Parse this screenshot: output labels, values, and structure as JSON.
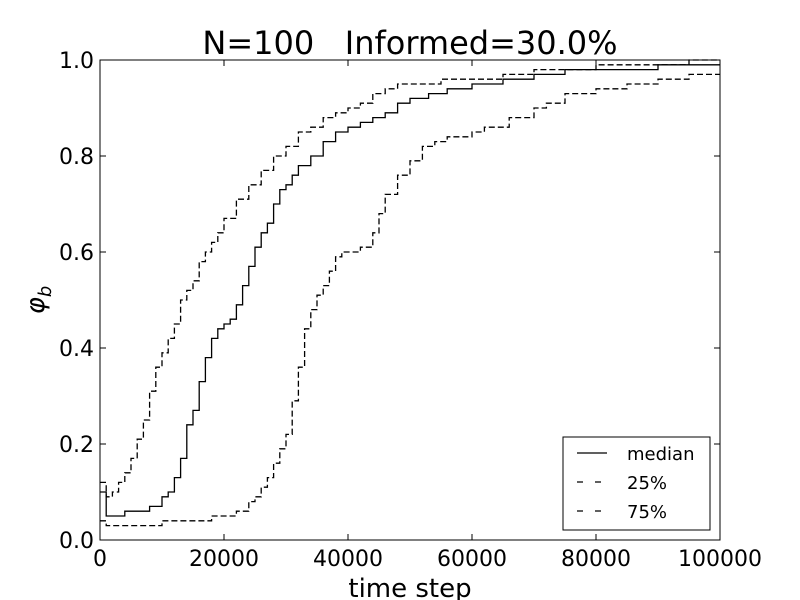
{
  "chart_data": {
    "type": "line",
    "title": "N=100   Informed=30.0%",
    "xlabel": "time step",
    "ylabel": "φ_b",
    "xlim": [
      0,
      100000
    ],
    "ylim": [
      0.0,
      1.0
    ],
    "x_ticks": [
      0,
      20000,
      40000,
      60000,
      80000,
      100000
    ],
    "x_tick_labels": [
      "0",
      "20000",
      "40000",
      "60000",
      "80000",
      "100000"
    ],
    "y_ticks": [
      0.0,
      0.2,
      0.4,
      0.6,
      0.8,
      1.0
    ],
    "y_tick_labels": [
      "0.0",
      "0.2",
      "0.4",
      "0.6",
      "0.8",
      "1.0"
    ],
    "grid": false,
    "legend_position": "lower-right",
    "series": [
      {
        "name": "median",
        "style": "solid",
        "color": "#000000",
        "x": [
          0,
          1000,
          2000,
          4000,
          6000,
          8000,
          10000,
          11000,
          12000,
          13000,
          14000,
          15000,
          16000,
          17000,
          18000,
          19000,
          20000,
          21000,
          22000,
          23000,
          24000,
          25000,
          26000,
          27000,
          28000,
          29000,
          30000,
          31000,
          32000,
          34000,
          36000,
          38000,
          40000,
          42000,
          44000,
          46000,
          48000,
          50000,
          53000,
          56000,
          60000,
          65000,
          70000,
          75000,
          80000,
          85000,
          90000,
          94000,
          97000,
          100000
        ],
        "y": [
          0.1,
          0.05,
          0.05,
          0.06,
          0.06,
          0.07,
          0.09,
          0.1,
          0.13,
          0.17,
          0.24,
          0.27,
          0.33,
          0.38,
          0.42,
          0.44,
          0.45,
          0.46,
          0.49,
          0.53,
          0.57,
          0.61,
          0.64,
          0.66,
          0.7,
          0.73,
          0.74,
          0.76,
          0.78,
          0.8,
          0.83,
          0.85,
          0.86,
          0.87,
          0.88,
          0.89,
          0.91,
          0.92,
          0.93,
          0.94,
          0.95,
          0.96,
          0.97,
          0.98,
          0.98,
          0.98,
          0.99,
          0.99,
          0.99,
          0.99
        ]
      },
      {
        "name": "25%",
        "style": "dashed",
        "color": "#000000",
        "x": [
          0,
          1000,
          2000,
          4000,
          6000,
          8000,
          10000,
          12000,
          14000,
          16000,
          18000,
          20000,
          22000,
          24000,
          25000,
          26000,
          27000,
          28000,
          29000,
          30000,
          31000,
          32000,
          33000,
          34000,
          35000,
          36000,
          37000,
          38000,
          39000,
          40000,
          42000,
          44000,
          45000,
          46000,
          48000,
          50000,
          52000,
          54000,
          56000,
          60000,
          62000,
          66000,
          70000,
          72000,
          75000,
          80000,
          85000,
          90000,
          95000,
          100000
        ],
        "y": [
          0.04,
          0.03,
          0.03,
          0.03,
          0.03,
          0.03,
          0.04,
          0.04,
          0.04,
          0.04,
          0.05,
          0.05,
          0.06,
          0.08,
          0.09,
          0.11,
          0.13,
          0.16,
          0.19,
          0.22,
          0.29,
          0.36,
          0.44,
          0.48,
          0.51,
          0.53,
          0.56,
          0.59,
          0.6,
          0.6,
          0.61,
          0.64,
          0.68,
          0.72,
          0.76,
          0.79,
          0.82,
          0.83,
          0.84,
          0.85,
          0.86,
          0.88,
          0.9,
          0.91,
          0.93,
          0.94,
          0.95,
          0.96,
          0.97,
          0.97
        ]
      },
      {
        "name": "75%",
        "style": "dashed",
        "color": "#000000",
        "x": [
          0,
          1000,
          2000,
          3000,
          4000,
          5000,
          6000,
          7000,
          8000,
          9000,
          10000,
          11000,
          12000,
          13000,
          14000,
          15000,
          16000,
          17000,
          18000,
          19000,
          20000,
          22000,
          24000,
          26000,
          28000,
          30000,
          32000,
          34000,
          36000,
          38000,
          40000,
          42000,
          44000,
          46000,
          48000,
          50000,
          55000,
          60000,
          65000,
          70000,
          75000,
          80000,
          85000,
          90000,
          95000,
          100000
        ],
        "y": [
          0.12,
          0.09,
          0.1,
          0.12,
          0.14,
          0.17,
          0.21,
          0.25,
          0.31,
          0.36,
          0.39,
          0.42,
          0.45,
          0.5,
          0.52,
          0.54,
          0.58,
          0.6,
          0.62,
          0.64,
          0.67,
          0.71,
          0.74,
          0.77,
          0.8,
          0.82,
          0.85,
          0.86,
          0.88,
          0.89,
          0.9,
          0.91,
          0.93,
          0.94,
          0.95,
          0.95,
          0.96,
          0.96,
          0.97,
          0.98,
          0.98,
          0.99,
          0.99,
          0.99,
          1.0,
          1.0
        ]
      }
    ]
  }
}
